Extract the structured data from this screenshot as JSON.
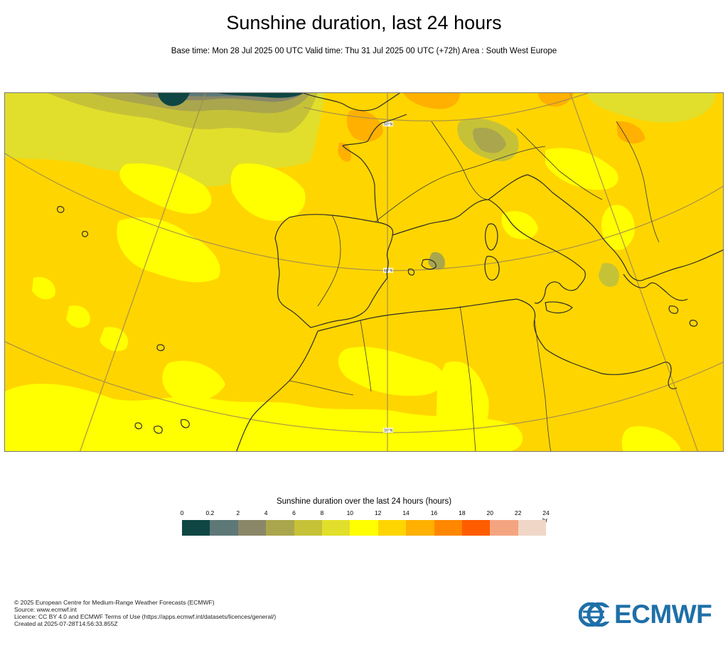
{
  "header": {
    "title": "Sunshine duration, last 24 hours",
    "subtitle": "Base time: Mon 28 Jul 2025 00 UTC Valid time: Thu 31 Jul 2025 00 UTC (+72h) Area : South West Europe"
  },
  "map": {
    "area": "South West Europe",
    "lat_labels": [
      "50°N",
      "40°N",
      "30°N"
    ]
  },
  "legend": {
    "title": "Sunshine duration over the last 24 hours (hours)",
    "unit": "hr",
    "ticks": [
      "0",
      "0.2",
      "2",
      "4",
      "6",
      "8",
      "10",
      "12",
      "14",
      "16",
      "18",
      "20",
      "22",
      "24"
    ],
    "colors": [
      "#0f4644",
      "#5d7877",
      "#8a8768",
      "#aaa64d",
      "#c6c238",
      "#e1df2b",
      "#ffff00",
      "#ffd500",
      "#ffb000",
      "#ff8700",
      "#ff5c00",
      "#f5a480",
      "#f0d6c7"
    ]
  },
  "footer": {
    "lines": [
      "© 2025 European Centre for Medium-Range Weather Forecasts (ECMWF)",
      "Source: www.ecmwf.int",
      "Licence: CC BY 4.0 and ECMWF Terms of Use (https://apps.ecmwf.int/datasets/licences/general/)",
      "Created at 2025-07-28T14:56:33.855Z"
    ]
  },
  "logo": {
    "text": "ECMWF",
    "color": "#1e6fa8"
  }
}
